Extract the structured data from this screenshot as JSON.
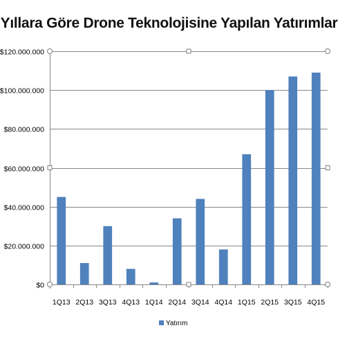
{
  "chart_data": {
    "type": "bar",
    "title": "Yıllara Göre Drone Teknolojisine Yapılan Yatırımlar",
    "xlabel": "",
    "ylabel": "",
    "categories": [
      "1Q13",
      "2Q13",
      "3Q13",
      "4Q13",
      "1Q14",
      "2Q14",
      "3Q14",
      "4Q14",
      "1Q15",
      "2Q15",
      "3Q15",
      "4Q15"
    ],
    "series": [
      {
        "name": "Yatırım",
        "color": "#4f81bd",
        "values": [
          45000000,
          11000000,
          30000000,
          8000000,
          1000000,
          34000000,
          44000000,
          18000000,
          67000000,
          100000000,
          107000000,
          109000000
        ]
      }
    ],
    "ylim": [
      0,
      120000000
    ],
    "yticks": [
      {
        "value": 0,
        "label": "$0"
      },
      {
        "value": 20000000,
        "label": "$20.000.000"
      },
      {
        "value": 40000000,
        "label": "$40.000.000"
      },
      {
        "value": 60000000,
        "label": "$60.000.000"
      },
      {
        "value": 80000000,
        "label": "$80.000.000"
      },
      {
        "value": 100000000,
        "label": "$100.000.000"
      },
      {
        "value": 120000000,
        "label": "$120.000.000"
      }
    ],
    "grid": true,
    "legend_position": "bottom"
  }
}
